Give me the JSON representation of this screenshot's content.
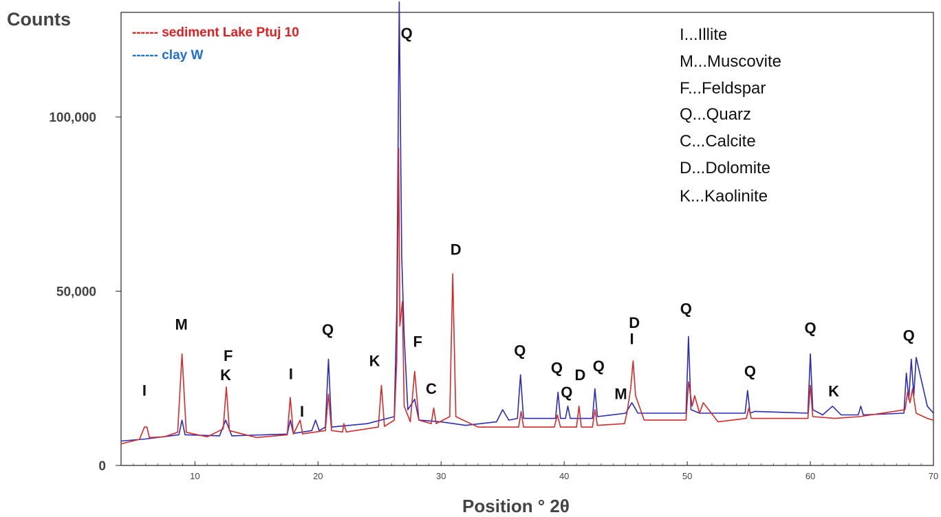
{
  "chart_data": {
    "type": "line",
    "ylabel": "Counts",
    "xlabel": "Position ° 2θ",
    "xlim": [
      4,
      70
    ],
    "ylim": [
      0,
      130000
    ],
    "grid": false,
    "x_ticks": [
      "10",
      "20",
      "30",
      "40",
      "50",
      "60",
      "70"
    ],
    "y_ticks": [
      {
        "value": 0,
        "label": "0"
      },
      {
        "value": 50000,
        "label": "50,000"
      },
      {
        "value": 100000,
        "label": "100,000"
      }
    ],
    "legend": {
      "placement": "top-left",
      "entries": [
        {
          "text": "------ sediment Lake Ptuj 10",
          "color": "#e02020"
        },
        {
          "text": "------ clay W",
          "color": "#1f6fd0"
        }
      ]
    },
    "key": [
      "I...Illite",
      "M...Muscovite",
      "F...Feldspar",
      "Q...Quarz",
      "C...Calcite",
      "D...Dolomite",
      "K...Kaolinite"
    ],
    "series": [
      {
        "name": "sediment Lake Ptuj 10",
        "color": "#d42a2a",
        "x": [
          4.0,
          5.5,
          5.9,
          6.1,
          6.3,
          7.5,
          8.6,
          8.95,
          9.3,
          11.0,
          12.3,
          12.55,
          12.8,
          15.0,
          17.5,
          17.75,
          18.0,
          18.55,
          18.75,
          19.0,
          20.6,
          20.85,
          21.1,
          22.0,
          22.1,
          22.3,
          24.9,
          25.15,
          25.4,
          26.2,
          26.4,
          26.55,
          26.65,
          26.85,
          27.0,
          27.5,
          27.85,
          28.2,
          29.2,
          29.4,
          29.6,
          30.7,
          30.95,
          31.2,
          33.0,
          36.3,
          36.5,
          36.7,
          39.2,
          39.45,
          39.7,
          41.0,
          41.2,
          41.4,
          42.3,
          42.5,
          42.7,
          44.9,
          45.1,
          45.4,
          45.6,
          45.8,
          46.5,
          49.9,
          50.1,
          50.4,
          50.6,
          51.0,
          51.3,
          52.5,
          54.8,
          55.0,
          55.2,
          59.8,
          60.0,
          60.2,
          62.0,
          64.0,
          67.7,
          67.9,
          68.1,
          68.3,
          68.6,
          69.5,
          70.0
        ],
        "y": [
          6200,
          7500,
          11000,
          11000,
          8000,
          8200,
          9500,
          32000,
          9500,
          8200,
          10500,
          22500,
          10000,
          8000,
          8800,
          19500,
          9000,
          13000,
          9000,
          9200,
          10000,
          20500,
          10000,
          9600,
          12000,
          9600,
          11000,
          23000,
          11200,
          13000,
          30000,
          91000,
          40000,
          47000,
          17000,
          12500,
          27000,
          13000,
          12000,
          16500,
          12000,
          14000,
          55000,
          14000,
          11000,
          11000,
          15500,
          11000,
          11000,
          14500,
          11000,
          11000,
          17000,
          11000,
          11000,
          16000,
          11500,
          12000,
          15000,
          22000,
          30000,
          20000,
          13000,
          13000,
          24000,
          17000,
          20000,
          15000,
          18000,
          12500,
          13500,
          16500,
          13500,
          13500,
          23000,
          14000,
          13500,
          14000,
          16000,
          21000,
          18000,
          22000,
          15000,
          13500,
          13000
        ]
      },
      {
        "name": "clay W",
        "color": "#2b2bb8",
        "x": [
          4.0,
          6.0,
          8.7,
          8.95,
          9.2,
          12.0,
          12.5,
          13.0,
          17.5,
          17.75,
          18.0,
          19.5,
          19.8,
          20.1,
          20.6,
          20.85,
          21.1,
          24.0,
          26.2,
          26.4,
          26.6,
          26.8,
          27.0,
          27.3,
          27.85,
          28.2,
          30.0,
          32.0,
          34.5,
          35.0,
          35.5,
          36.2,
          36.45,
          36.7,
          39.3,
          39.5,
          39.7,
          40.1,
          40.3,
          40.5,
          42.3,
          42.5,
          42.7,
          45.0,
          45.5,
          46.0,
          49.9,
          50.1,
          50.3,
          51.0,
          54.7,
          54.9,
          55.1,
          55.5,
          59.8,
          60.0,
          60.2,
          61.0,
          61.8,
          62.5,
          63.9,
          64.1,
          64.3,
          67.6,
          67.8,
          68.0,
          68.2,
          68.4,
          68.6,
          69.5,
          70.0
        ],
        "y": [
          7000,
          7600,
          8800,
          13000,
          8800,
          8500,
          13000,
          8500,
          9000,
          13000,
          9200,
          10000,
          13000,
          10000,
          11000,
          30500,
          11000,
          12000,
          14000,
          45000,
          133000,
          60000,
          37000,
          16000,
          19000,
          13000,
          12500,
          11500,
          12500,
          16000,
          13000,
          13500,
          26000,
          13500,
          13500,
          21000,
          13500,
          13500,
          17000,
          13500,
          13500,
          22000,
          14000,
          15000,
          18000,
          15000,
          15000,
          37000,
          16000,
          15000,
          15000,
          21500,
          15000,
          15500,
          15000,
          32000,
          16000,
          14500,
          17000,
          14500,
          14500,
          17000,
          14500,
          15000,
          26500,
          19000,
          30500,
          20000,
          31000,
          17000,
          15000
        ]
      }
    ],
    "annotations": [
      {
        "text": "I",
        "x": 5.9,
        "y": 20000
      },
      {
        "text": "M",
        "x": 8.9,
        "y": 39000
      },
      {
        "text": "F",
        "x": 12.7,
        "y": 30000
      },
      {
        "text": "K",
        "x": 12.5,
        "y": 24500
      },
      {
        "text": "I",
        "x": 17.8,
        "y": 24800
      },
      {
        "text": "I",
        "x": 18.7,
        "y": 14000
      },
      {
        "text": "Q",
        "x": 20.8,
        "y": 37500
      },
      {
        "text": "K",
        "x": 24.6,
        "y": 28500
      },
      {
        "text": "Q",
        "x": 27.2,
        "y": 122500
      },
      {
        "text": "F",
        "x": 28.1,
        "y": 34000
      },
      {
        "text": "C",
        "x": 29.2,
        "y": 20500
      },
      {
        "text": "D",
        "x": 31.2,
        "y": 60500
      },
      {
        "text": "Q",
        "x": 36.4,
        "y": 31500
      },
      {
        "text": "Q",
        "x": 39.4,
        "y": 26500
      },
      {
        "text": "Q",
        "x": 40.2,
        "y": 19500
      },
      {
        "text": "D",
        "x": 41.3,
        "y": 24500
      },
      {
        "text": "Q",
        "x": 42.8,
        "y": 27000
      },
      {
        "text": "M",
        "x": 44.6,
        "y": 19000
      },
      {
        "text": "D",
        "x": 45.7,
        "y": 39500
      },
      {
        "text": "I",
        "x": 45.5,
        "y": 34800
      },
      {
        "text": "Q",
        "x": 49.9,
        "y": 43500
      },
      {
        "text": "Q",
        "x": 55.1,
        "y": 25500
      },
      {
        "text": "Q",
        "x": 60.0,
        "y": 38000
      },
      {
        "text": "K",
        "x": 61.9,
        "y": 19800
      },
      {
        "text": "Q",
        "x": 68.0,
        "y": 35800
      }
    ]
  }
}
